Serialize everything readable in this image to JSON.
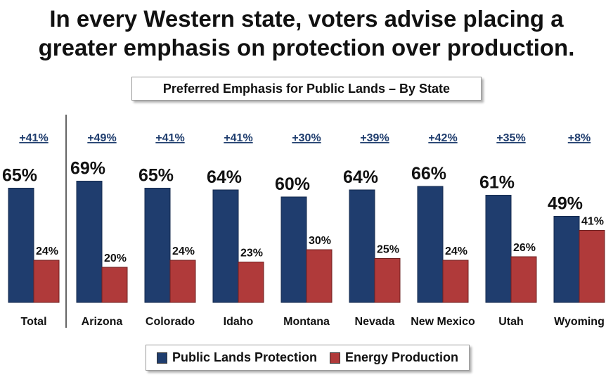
{
  "headline": {
    "line1": "In every Western state, voters advise placing a",
    "line2": "greater emphasis on protection over production."
  },
  "colors": {
    "protection": "#1f3d6e",
    "production": "#b03a3a",
    "diff_label": "#1f3d6e",
    "separator": "#333333"
  },
  "chart_data": {
    "type": "bar",
    "title": "Preferred Emphasis for Public Lands – By State",
    "categories": [
      "Total",
      "Arizona",
      "Colorado",
      "Idaho",
      "Montana",
      "Nevada",
      "New Mexico",
      "Utah",
      "Wyoming"
    ],
    "series": [
      {
        "name": "Public Lands Protection",
        "values": [
          65,
          69,
          65,
          64,
          60,
          64,
          66,
          61,
          49
        ],
        "labels": [
          "65%",
          "69%",
          "65%",
          "64%",
          "60%",
          "64%",
          "66%",
          "61%",
          "49%"
        ]
      },
      {
        "name": "Energy Production",
        "values": [
          24,
          20,
          24,
          23,
          30,
          25,
          24,
          26,
          41
        ],
        "labels": [
          "24%",
          "20%",
          "24%",
          "23%",
          "30%",
          "25%",
          "24%",
          "26%",
          "41%"
        ]
      }
    ],
    "differences": [
      "+41%",
      "+49%",
      "+41%",
      "+41%",
      "+30%",
      "+39%",
      "+42%",
      "+35%",
      "+8%"
    ],
    "ylim": [
      0,
      100
    ],
    "grid": false,
    "legend_position": "bottom"
  }
}
